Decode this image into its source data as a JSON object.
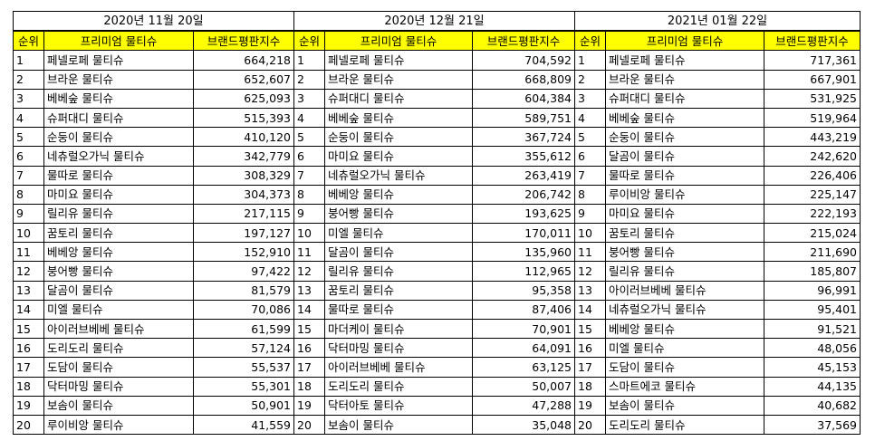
{
  "blocks": [
    {
      "date": "2020년 11월 20일",
      "headers": {
        "rank": "순위",
        "name": "프리미엄 물티슈",
        "score": "브랜드평판지수"
      },
      "rows": [
        {
          "rank": "1",
          "name": "페넬로페 물티슈",
          "score": "664,218"
        },
        {
          "rank": "2",
          "name": "브라운 물티슈",
          "score": "652,607"
        },
        {
          "rank": "3",
          "name": "베베숲 물티슈",
          "score": "625,093"
        },
        {
          "rank": "4",
          "name": "슈퍼대디 물티슈",
          "score": "515,393"
        },
        {
          "rank": "5",
          "name": "순둥이 물티슈",
          "score": "410,120"
        },
        {
          "rank": "6",
          "name": "네츄럴오가닉 물티슈",
          "score": "342,779"
        },
        {
          "rank": "7",
          "name": "물따로 물티슈",
          "score": "308,329"
        },
        {
          "rank": "8",
          "name": "마미요 물티슈",
          "score": "304,373"
        },
        {
          "rank": "9",
          "name": "릴리유 물티슈",
          "score": "217,115"
        },
        {
          "rank": "10",
          "name": "꿈토리 물티슈",
          "score": "197,127"
        },
        {
          "rank": "11",
          "name": "베베앙 물티슈",
          "score": "152,910"
        },
        {
          "rank": "12",
          "name": "붕어빵 물티슈",
          "score": "97,422"
        },
        {
          "rank": "13",
          "name": "달곰이 물티슈",
          "score": "81,579"
        },
        {
          "rank": "14",
          "name": "미엘 물티슈",
          "score": "70,086"
        },
        {
          "rank": "15",
          "name": "아이러브베베 물티슈",
          "score": "61,599"
        },
        {
          "rank": "16",
          "name": "도리도리 물티슈",
          "score": "57,124"
        },
        {
          "rank": "17",
          "name": "도담이 물티슈",
          "score": "55,537"
        },
        {
          "rank": "18",
          "name": "닥터마밍 물티슈",
          "score": "55,301"
        },
        {
          "rank": "19",
          "name": "보솜이 물티슈",
          "score": "50,901"
        },
        {
          "rank": "20",
          "name": "루이비앙 물티슈",
          "score": "41,559"
        }
      ]
    },
    {
      "date": "2020년 12월 21일",
      "headers": {
        "rank": "순위",
        "name": "프리미엄 물티슈",
        "score": "브랜드평판지수"
      },
      "rows": [
        {
          "rank": "1",
          "name": "페넬로페 물티슈",
          "score": "704,592"
        },
        {
          "rank": "2",
          "name": "브라운 물티슈",
          "score": "668,809"
        },
        {
          "rank": "3",
          "name": "슈퍼대디 물티슈",
          "score": "604,384"
        },
        {
          "rank": "4",
          "name": "베베숲 물티슈",
          "score": "589,751"
        },
        {
          "rank": "5",
          "name": "순둥이 물티슈",
          "score": "367,724"
        },
        {
          "rank": "6",
          "name": "마미요 물티슈",
          "score": "355,612"
        },
        {
          "rank": "7",
          "name": "네츄럴오가닉 물티슈",
          "score": "263,419"
        },
        {
          "rank": "8",
          "name": "베베앙 물티슈",
          "score": "206,742"
        },
        {
          "rank": "9",
          "name": "붕어빵 물티슈",
          "score": "193,625"
        },
        {
          "rank": "10",
          "name": "미엘 물티슈",
          "score": "170,011"
        },
        {
          "rank": "11",
          "name": "달곰이 물티슈",
          "score": "135,960"
        },
        {
          "rank": "12",
          "name": "릴리유 물티슈",
          "score": "112,965"
        },
        {
          "rank": "13",
          "name": "꿈토리 물티슈",
          "score": "95,358"
        },
        {
          "rank": "14",
          "name": "물따로 물티슈",
          "score": "87,406"
        },
        {
          "rank": "15",
          "name": "마더케이 물티슈",
          "score": "70,901"
        },
        {
          "rank": "16",
          "name": "닥터마밍 물티슈",
          "score": "64,091"
        },
        {
          "rank": "17",
          "name": "아이러브베베 물티슈",
          "score": "63,125"
        },
        {
          "rank": "18",
          "name": "도리도리 물티슈",
          "score": "50,007"
        },
        {
          "rank": "19",
          "name": "닥터아토 물티슈",
          "score": "47,288"
        },
        {
          "rank": "20",
          "name": "보솜이 물티슈",
          "score": "35,048"
        }
      ]
    },
    {
      "date": "2021년 01월 22일",
      "headers": {
        "rank": "순위",
        "name": "프리미엄 물티슈",
        "score": "브랜드평판지수"
      },
      "rows": [
        {
          "rank": "1",
          "name": "페넬로페 물티슈",
          "score": "717,361"
        },
        {
          "rank": "2",
          "name": "브라운 물티슈",
          "score": "667,901"
        },
        {
          "rank": "3",
          "name": "슈퍼대디 물티슈",
          "score": "531,925"
        },
        {
          "rank": "4",
          "name": "베베숲 물티슈",
          "score": "519,964"
        },
        {
          "rank": "5",
          "name": "순둥이 물티슈",
          "score": "443,219"
        },
        {
          "rank": "6",
          "name": "달곰이 물티슈",
          "score": "242,620"
        },
        {
          "rank": "7",
          "name": "물따로 물티슈",
          "score": "226,406"
        },
        {
          "rank": "8",
          "name": "루이비앙 물티슈",
          "score": "225,147"
        },
        {
          "rank": "9",
          "name": "마미요 물티슈",
          "score": "222,193"
        },
        {
          "rank": "10",
          "name": "꿈토리 물티슈",
          "score": "215,024"
        },
        {
          "rank": "11",
          "name": "붕어빵 물티슈",
          "score": "211,690"
        },
        {
          "rank": "12",
          "name": "릴리유 물티슈",
          "score": "185,807"
        },
        {
          "rank": "13",
          "name": "아이러브베베 물티슈",
          "score": "96,991"
        },
        {
          "rank": "14",
          "name": "네츄럴오가닉 물티슈",
          "score": "95,401"
        },
        {
          "rank": "15",
          "name": "베베앙 물티슈",
          "score": "91,521"
        },
        {
          "rank": "16",
          "name": "미엘 물티슈",
          "score": "48,056"
        },
        {
          "rank": "17",
          "name": "도담이 물티슈",
          "score": "45,153"
        },
        {
          "rank": "18",
          "name": "스마트에코 물티슈",
          "score": "44,135"
        },
        {
          "rank": "19",
          "name": "보솜이 물티슈",
          "score": "40,682"
        },
        {
          "rank": "20",
          "name": "도리도리 물티슈",
          "score": "37,569"
        }
      ]
    }
  ],
  "colors": {
    "header_bg": "#ffff00",
    "border": "#000000",
    "background": "#ffffff"
  }
}
